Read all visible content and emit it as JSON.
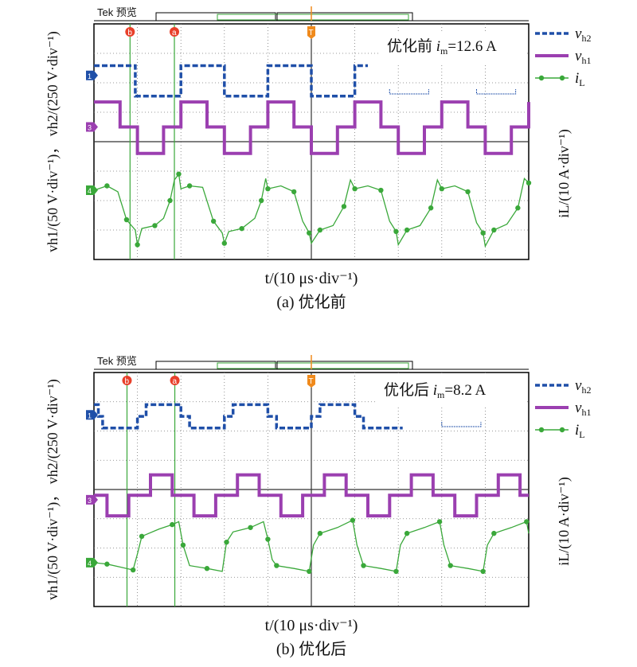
{
  "chart_data": [
    {
      "type": "line",
      "caption": "(a) 优化前",
      "scope_header": "Tek 预览",
      "inset_label": {
        "prefix": "优化前 ",
        "var": "i",
        "sub": "m",
        "value": "=12.6 A"
      },
      "xlabel": "t/(10 μs·div⁻¹)",
      "ylabel_left": "vh1/(50 V·div⁻¹)， vh2/(250 V·div⁻¹)",
      "ylabel_right": "iL/(10 A·div⁻¹)",
      "x_divisions": 10,
      "y_divisions": 8,
      "grid": true,
      "markers": {
        "b": "b",
        "a": "a",
        "trigger": "T"
      },
      "channel_markers": [
        "1",
        "3",
        "4"
      ],
      "series": [
        {
          "name": "vh2",
          "name_main": "v",
          "name_sub": "h2",
          "color": "#1f4fa8",
          "style": "dashed"
        },
        {
          "name": "vh1",
          "name_main": "v",
          "name_sub": "h1",
          "color": "#9b3fb0",
          "style": "solid"
        },
        {
          "name": "iL",
          "name_main": "i",
          "name_sub": "L",
          "color": "#3aa83a",
          "style": "dotted-marker"
        }
      ],
      "data": {
        "vh2_divs": [
          [
            0,
            6.58
          ],
          [
            0.95,
            6.58
          ],
          [
            0.95,
            5.55
          ],
          [
            2.0,
            5.55
          ],
          [
            2.0,
            6.58
          ],
          [
            3.0,
            6.58
          ],
          [
            3.0,
            5.55
          ],
          [
            4.0,
            5.55
          ],
          [
            4.0,
            6.58
          ],
          [
            5.0,
            6.58
          ],
          [
            5.0,
            5.55
          ],
          [
            6.0,
            5.55
          ],
          [
            6.0,
            6.58
          ],
          [
            6.3,
            6.58
          ]
        ],
        "vh2_partial": [
          [
            6.8,
            5.62
          ],
          [
            7.7,
            5.62
          ],
          [
            8.8,
            5.62
          ],
          [
            9.7,
            5.62
          ]
        ],
        "vh1_divs": [
          [
            0,
            5.35
          ],
          [
            0.6,
            5.35
          ],
          [
            0.6,
            4.5
          ],
          [
            1.0,
            4.5
          ],
          [
            1.0,
            3.6
          ],
          [
            1.6,
            3.6
          ],
          [
            1.6,
            4.5
          ],
          [
            2.0,
            4.5
          ],
          [
            2.0,
            5.35
          ],
          [
            2.6,
            5.35
          ],
          [
            2.6,
            4.5
          ],
          [
            3.0,
            4.5
          ],
          [
            3.0,
            3.6
          ],
          [
            3.6,
            3.6
          ],
          [
            3.6,
            4.5
          ],
          [
            4.0,
            4.5
          ],
          [
            4.0,
            5.35
          ],
          [
            4.6,
            5.35
          ],
          [
            4.6,
            4.5
          ],
          [
            5.0,
            4.5
          ],
          [
            5.0,
            3.6
          ],
          [
            5.6,
            3.6
          ],
          [
            5.6,
            4.5
          ],
          [
            6.0,
            4.5
          ],
          [
            6.0,
            5.35
          ],
          [
            6.6,
            5.35
          ],
          [
            6.6,
            4.5
          ],
          [
            7.0,
            4.5
          ],
          [
            7.0,
            3.6
          ],
          [
            7.6,
            3.6
          ],
          [
            7.6,
            4.5
          ],
          [
            8.0,
            4.5
          ],
          [
            8.0,
            5.35
          ],
          [
            8.6,
            5.35
          ],
          [
            8.6,
            4.5
          ],
          [
            9.0,
            4.5
          ],
          [
            9.0,
            3.6
          ],
          [
            9.6,
            3.6
          ],
          [
            9.6,
            4.5
          ],
          [
            10,
            4.5
          ],
          [
            10,
            5.35
          ]
        ],
        "iL_divs": [
          [
            0,
            2.35
          ],
          [
            0.3,
            2.5
          ],
          [
            0.55,
            2.3
          ],
          [
            0.75,
            1.35
          ],
          [
            0.95,
            1.0
          ],
          [
            1.0,
            0.5
          ],
          [
            1.1,
            1.05
          ],
          [
            1.4,
            1.15
          ],
          [
            1.6,
            1.4
          ],
          [
            1.75,
            2.0
          ],
          [
            1.85,
            2.7
          ],
          [
            1.95,
            2.9
          ],
          [
            2.0,
            2.4
          ],
          [
            2.2,
            2.5
          ],
          [
            2.5,
            2.45
          ],
          [
            2.75,
            1.3
          ],
          [
            2.95,
            0.9
          ],
          [
            3.0,
            0.55
          ],
          [
            3.1,
            0.95
          ],
          [
            3.4,
            1.05
          ],
          [
            3.7,
            1.4
          ],
          [
            3.85,
            2.0
          ],
          [
            3.95,
            2.75
          ],
          [
            4.0,
            2.4
          ],
          [
            4.3,
            2.5
          ],
          [
            4.6,
            2.3
          ],
          [
            4.8,
            1.3
          ],
          [
            4.95,
            0.9
          ],
          [
            5.0,
            0.55
          ],
          [
            5.2,
            1.0
          ],
          [
            5.5,
            1.15
          ],
          [
            5.75,
            1.8
          ],
          [
            5.9,
            2.7
          ],
          [
            6.0,
            2.4
          ],
          [
            6.3,
            2.5
          ],
          [
            6.6,
            2.35
          ],
          [
            6.8,
            1.3
          ],
          [
            6.95,
            0.95
          ],
          [
            7.0,
            0.5
          ],
          [
            7.2,
            1.0
          ],
          [
            7.5,
            1.15
          ],
          [
            7.75,
            1.75
          ],
          [
            7.9,
            2.7
          ],
          [
            8.0,
            2.4
          ],
          [
            8.3,
            2.5
          ],
          [
            8.6,
            2.3
          ],
          [
            8.8,
            1.25
          ],
          [
            8.95,
            0.9
          ],
          [
            9.0,
            0.45
          ],
          [
            9.2,
            1.0
          ],
          [
            9.5,
            1.2
          ],
          [
            9.75,
            1.75
          ],
          [
            9.9,
            2.75
          ],
          [
            10,
            2.6
          ]
        ]
      }
    },
    {
      "type": "line",
      "caption": "(b) 优化后",
      "scope_header": "Tek 预览",
      "inset_label": {
        "prefix": "优化后 ",
        "var": "i",
        "sub": "m",
        "value": "=8.2 A"
      },
      "xlabel": "t/(10 μs·div⁻¹)",
      "ylabel_left": "vh1/(50 V·div⁻¹)， vh2/(250 V·div⁻¹)",
      "ylabel_right": "iL/(10 A·div⁻¹)",
      "x_divisions": 10,
      "y_divisions": 8,
      "grid": true,
      "markers": {
        "b": "b",
        "a": "a",
        "trigger": "T"
      },
      "channel_markers": [
        "1",
        "3",
        "4"
      ],
      "series": [
        {
          "name": "vh2",
          "name_main": "v",
          "name_sub": "h2",
          "color": "#1f4fa8",
          "style": "dashed"
        },
        {
          "name": "vh1",
          "name_main": "v",
          "name_sub": "h1",
          "color": "#9b3fb0",
          "style": "solid"
        },
        {
          "name": "iL",
          "name_main": "i",
          "name_sub": "L",
          "color": "#3aa83a",
          "style": "dotted-marker"
        }
      ],
      "data": {
        "vh2_divs": [
          [
            0,
            6.9
          ],
          [
            0.1,
            6.9
          ],
          [
            0.1,
            6.5
          ],
          [
            0.2,
            6.5
          ],
          [
            0.2,
            6.1
          ],
          [
            1.0,
            6.1
          ],
          [
            1.0,
            6.5
          ],
          [
            1.2,
            6.5
          ],
          [
            1.2,
            6.9
          ],
          [
            2.0,
            6.9
          ],
          [
            2.0,
            6.5
          ],
          [
            2.2,
            6.5
          ],
          [
            2.2,
            6.1
          ],
          [
            3.0,
            6.1
          ],
          [
            3.0,
            6.5
          ],
          [
            3.2,
            6.5
          ],
          [
            3.2,
            6.9
          ],
          [
            4.0,
            6.9
          ],
          [
            4.0,
            6.5
          ],
          [
            4.2,
            6.5
          ],
          [
            4.2,
            6.1
          ],
          [
            5.0,
            6.1
          ],
          [
            5.0,
            6.5
          ],
          [
            5.2,
            6.5
          ],
          [
            5.2,
            6.9
          ],
          [
            6.0,
            6.9
          ],
          [
            6.0,
            6.5
          ],
          [
            6.2,
            6.5
          ],
          [
            6.2,
            6.1
          ],
          [
            7.1,
            6.1
          ]
        ],
        "vh2_partial": [
          [
            8.0,
            6.15
          ],
          [
            8.9,
            6.15
          ]
        ],
        "vh1_divs": [
          [
            0,
            3.8
          ],
          [
            0.3,
            3.8
          ],
          [
            0.3,
            3.1
          ],
          [
            0.8,
            3.1
          ],
          [
            0.8,
            3.8
          ],
          [
            1.3,
            3.8
          ],
          [
            1.3,
            4.5
          ],
          [
            1.8,
            4.5
          ],
          [
            1.8,
            3.8
          ],
          [
            2.3,
            3.8
          ],
          [
            2.3,
            3.1
          ],
          [
            2.8,
            3.1
          ],
          [
            2.8,
            3.8
          ],
          [
            3.3,
            3.8
          ],
          [
            3.3,
            4.5
          ],
          [
            3.8,
            4.5
          ],
          [
            3.8,
            3.8
          ],
          [
            4.3,
            3.8
          ],
          [
            4.3,
            3.1
          ],
          [
            4.8,
            3.1
          ],
          [
            4.8,
            3.8
          ],
          [
            5.3,
            3.8
          ],
          [
            5.3,
            4.5
          ],
          [
            5.8,
            4.5
          ],
          [
            5.8,
            3.8
          ],
          [
            6.3,
            3.8
          ],
          [
            6.3,
            3.1
          ],
          [
            6.8,
            3.1
          ],
          [
            6.8,
            3.8
          ],
          [
            7.3,
            3.8
          ],
          [
            7.3,
            4.5
          ],
          [
            7.8,
            4.5
          ],
          [
            7.8,
            3.8
          ],
          [
            8.3,
            3.8
          ],
          [
            8.3,
            3.1
          ],
          [
            8.8,
            3.1
          ],
          [
            8.8,
            3.8
          ],
          [
            9.3,
            3.8
          ],
          [
            9.3,
            4.5
          ],
          [
            9.8,
            4.5
          ],
          [
            9.8,
            3.8
          ],
          [
            10,
            3.8
          ]
        ],
        "iL_divs": [
          [
            0,
            1.5
          ],
          [
            0.3,
            1.45
          ],
          [
            0.6,
            1.35
          ],
          [
            0.9,
            1.25
          ],
          [
            1.0,
            1.8
          ],
          [
            1.1,
            2.4
          ],
          [
            1.5,
            2.65
          ],
          [
            1.8,
            2.8
          ],
          [
            1.95,
            2.9
          ],
          [
            2.05,
            2.1
          ],
          [
            2.2,
            1.4
          ],
          [
            2.6,
            1.3
          ],
          [
            2.95,
            1.2
          ],
          [
            3.05,
            2.2
          ],
          [
            3.2,
            2.55
          ],
          [
            3.6,
            2.7
          ],
          [
            3.9,
            2.9
          ],
          [
            4.0,
            2.3
          ],
          [
            4.1,
            1.6
          ],
          [
            4.2,
            1.4
          ],
          [
            4.6,
            1.3
          ],
          [
            4.95,
            1.2
          ],
          [
            5.05,
            2.1
          ],
          [
            5.2,
            2.5
          ],
          [
            5.6,
            2.7
          ],
          [
            5.95,
            2.95
          ],
          [
            6.05,
            2.1
          ],
          [
            6.2,
            1.4
          ],
          [
            6.6,
            1.3
          ],
          [
            6.95,
            1.2
          ],
          [
            7.05,
            2.1
          ],
          [
            7.2,
            2.5
          ],
          [
            7.6,
            2.7
          ],
          [
            7.95,
            2.9
          ],
          [
            8.05,
            2.1
          ],
          [
            8.2,
            1.4
          ],
          [
            8.6,
            1.3
          ],
          [
            8.95,
            1.2
          ],
          [
            9.05,
            2.1
          ],
          [
            9.2,
            2.5
          ],
          [
            9.6,
            2.7
          ],
          [
            9.95,
            2.9
          ],
          [
            10,
            2.5
          ]
        ]
      }
    }
  ]
}
